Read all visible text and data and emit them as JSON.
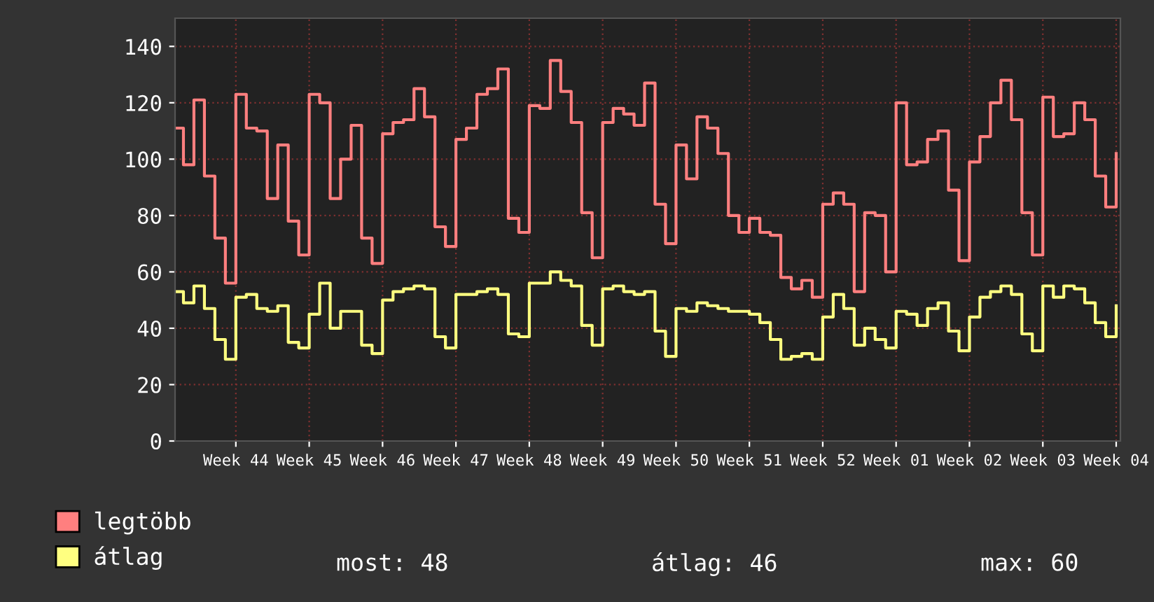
{
  "chart_data": {
    "type": "step",
    "categories": [
      null,
      null,
      null,
      null,
      null,
      null,
      "Week 44",
      null,
      null,
      null,
      null,
      null,
      null,
      "Week 45",
      null,
      null,
      null,
      null,
      null,
      null,
      "Week 46",
      null,
      null,
      null,
      null,
      null,
      null,
      "Week 47",
      null,
      null,
      null,
      null,
      null,
      null,
      "Week 48",
      null,
      null,
      null,
      null,
      null,
      null,
      "Week 49",
      null,
      null,
      null,
      null,
      null,
      null,
      "Week 50",
      null,
      null,
      null,
      null,
      null,
      null,
      "Week 51",
      null,
      null,
      null,
      null,
      null,
      null,
      "Week 52",
      null,
      null,
      null,
      null,
      null,
      null,
      "Week 01",
      null,
      null,
      null,
      null,
      null,
      null,
      "Week 02",
      null,
      null,
      null,
      null,
      null,
      null,
      "Week 03",
      null,
      null,
      null,
      null,
      null,
      null,
      "Week 04"
    ],
    "series": [
      {
        "name": "legtöbb",
        "color": "#ff7f7f",
        "values": [
          111,
          98,
          121,
          94,
          72,
          56,
          123,
          111,
          110,
          86,
          105,
          78,
          66,
          123,
          120,
          86,
          100,
          112,
          72,
          63,
          109,
          113,
          114,
          125,
          115,
          76,
          69,
          107,
          111,
          123,
          125,
          132,
          79,
          74,
          119,
          118,
          135,
          124,
          113,
          81,
          65,
          113,
          118,
          116,
          112,
          127,
          84,
          70,
          105,
          93,
          115,
          111,
          102,
          80,
          74,
          79,
          74,
          73,
          58,
          54,
          57,
          51,
          84,
          88,
          84,
          53,
          81,
          80,
          60,
          120,
          98,
          99,
          107,
          110,
          89,
          64,
          99,
          108,
          120,
          128,
          114,
          81,
          66,
          122,
          108,
          109,
          120,
          114,
          94,
          83,
          102
        ]
      },
      {
        "name": "átlag",
        "color": "#ffff80",
        "values": [
          53,
          49,
          55,
          47,
          36,
          29,
          51,
          52,
          47,
          46,
          48,
          35,
          33,
          45,
          56,
          40,
          46,
          46,
          34,
          31,
          50,
          53,
          54,
          55,
          54,
          37,
          33,
          52,
          52,
          53,
          54,
          52,
          38,
          37,
          56,
          56,
          60,
          57,
          55,
          41,
          34,
          54,
          55,
          53,
          52,
          53,
          39,
          30,
          47,
          46,
          49,
          48,
          47,
          46,
          46,
          45,
          42,
          36,
          29,
          30,
          31,
          29,
          44,
          52,
          47,
          34,
          40,
          36,
          33,
          46,
          45,
          41,
          47,
          49,
          39,
          32,
          44,
          51,
          53,
          55,
          52,
          38,
          32,
          55,
          51,
          55,
          54,
          49,
          42,
          37,
          48
        ]
      }
    ],
    "ylim": [
      0,
      150
    ],
    "yticks": [
      0,
      20,
      40,
      60,
      80,
      100,
      120,
      140
    ],
    "grid": true,
    "legend": "bottom",
    "annotations": [
      "most: 48",
      "átlag: 46",
      "max: 60"
    ]
  }
}
